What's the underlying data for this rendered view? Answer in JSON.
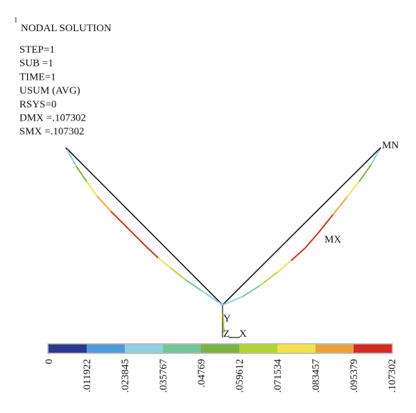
{
  "window_number": "1",
  "title": "NODAL SOLUTION",
  "info": [
    "STEP=1",
    "SUB =1",
    "TIME=1",
    "USUM (AVG)",
    "RSYS=0",
    "DMX =.107302",
    "SMX =.107302"
  ],
  "markers": {
    "min": "MN",
    "max": "MX"
  },
  "triad": {
    "y": "Y",
    "z": "Z",
    "x": "X"
  },
  "legend": {
    "colors": [
      "#2b3990",
      "#4f9bd9",
      "#8ecfe0",
      "#72c59b",
      "#7cb342",
      "#b5d334",
      "#f2e14c",
      "#e9a23b",
      "#d42a20"
    ],
    "labels": [
      "0",
      ".011922",
      ".023845",
      ".035767",
      ".04769",
      ".059612",
      ".071534",
      ".083457",
      ".095379",
      ".107302"
    ]
  }
}
